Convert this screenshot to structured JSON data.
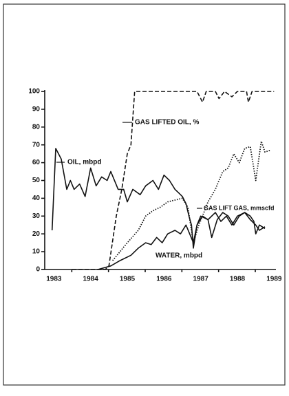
{
  "chart_data": {
    "type": "line",
    "xlim": [
      1982.75,
      1989.05
    ],
    "xticks": [
      1983,
      1984,
      1985,
      1986,
      1987,
      1988,
      1989
    ],
    "ylim": [
      0,
      100
    ],
    "yticks": [
      0,
      10,
      20,
      30,
      40,
      50,
      60,
      70,
      80,
      90,
      100
    ],
    "series": [
      {
        "name": "OIL, mbpd",
        "color": "#111",
        "style": "solid",
        "x": [
          1982.95,
          1983.05,
          1983.2,
          1983.35,
          1983.45,
          1983.55,
          1983.7,
          1983.85,
          1984.0,
          1984.15,
          1984.3,
          1984.45,
          1984.55,
          1984.75,
          1984.9,
          1985.0,
          1985.15,
          1985.35,
          1985.5,
          1985.7,
          1985.85,
          1986.0,
          1986.15,
          1986.3,
          1986.4,
          1986.5,
          1986.6,
          1986.68,
          1986.75,
          1986.8,
          1986.9,
          1987.0,
          1987.2,
          1987.4,
          1987.55,
          1987.7,
          1987.85,
          1988.0,
          1988.2,
          1988.35,
          1988.5,
          1988.6,
          1988.75
        ],
        "values": [
          22,
          68,
          62,
          45,
          50,
          45,
          48,
          41,
          57,
          47,
          52,
          50,
          55,
          45,
          45,
          38,
          45,
          42,
          47,
          50,
          45,
          53,
          50,
          45,
          43,
          41,
          37,
          30,
          25,
          12,
          25,
          30,
          28,
          32,
          27,
          30,
          25,
          30,
          32,
          28,
          25,
          22,
          24
        ]
      },
      {
        "name": "GAS LIFTED OIL, %",
        "color": "#111",
        "style": "dashed",
        "x": [
          1983.5,
          1984.4,
          1984.5,
          1984.7,
          1984.85,
          1985.0,
          1985.1,
          1985.2,
          1986.9,
          1987.05,
          1987.15,
          1987.4,
          1987.5,
          1987.65,
          1987.85,
          1988.0,
          1988.25,
          1988.3,
          1988.4,
          1989.0
        ],
        "values": [
          0,
          0,
          2,
          30,
          45,
          65,
          70,
          100,
          100,
          94,
          100,
          100,
          96,
          100,
          97,
          100,
          100,
          94,
          100,
          100
        ]
      },
      {
        "name": "GAS LIFT GAS, mmscfd",
        "color": "#111",
        "style": "dotted",
        "x": [
          1984.6,
          1985.0,
          1985.3,
          1985.5,
          1985.7,
          1985.9,
          1986.1,
          1986.5,
          1986.65,
          1986.8,
          1986.95,
          1987.05,
          1987.2,
          1987.4,
          1987.6,
          1987.75,
          1987.9,
          1988.05,
          1988.2,
          1988.35,
          1988.5,
          1988.65,
          1988.75,
          1988.9
        ],
        "values": [
          5,
          15,
          22,
          30,
          33,
          35,
          38,
          40,
          35,
          15,
          25,
          30,
          38,
          45,
          55,
          57,
          65,
          60,
          68,
          69,
          50,
          72,
          66,
          67
        ]
      },
      {
        "name": "WATER, mbpd",
        "color": "#111",
        "style": "solid",
        "x": [
          1984.2,
          1984.55,
          1984.8,
          1985.1,
          1985.3,
          1985.5,
          1985.65,
          1985.8,
          1985.95,
          1986.1,
          1986.3,
          1986.45,
          1986.6,
          1986.8,
          1986.9,
          1987.05,
          1987.2,
          1987.3,
          1987.45,
          1987.6,
          1987.75,
          1987.9,
          1988.05,
          1988.2,
          1988.35,
          1988.45,
          1988.5,
          1988.6,
          1988.75
        ],
        "values": [
          0,
          2,
          5,
          8,
          12,
          15,
          14,
          18,
          15,
          20,
          22,
          20,
          25,
          15,
          25,
          30,
          28,
          18,
          28,
          32,
          30,
          25,
          30,
          32,
          30,
          27,
          20,
          25,
          23
        ]
      }
    ]
  }
}
